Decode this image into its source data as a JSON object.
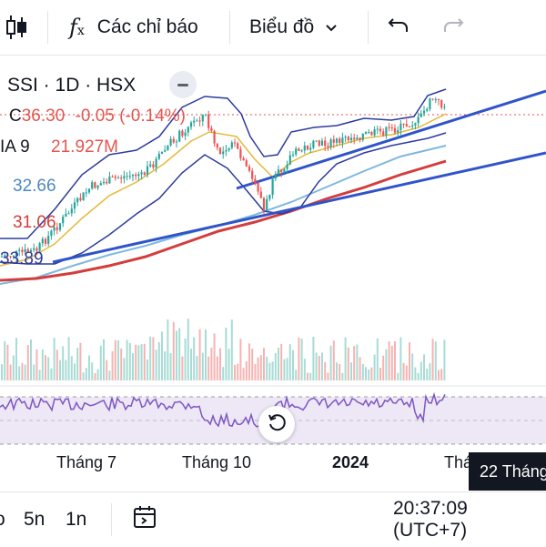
{
  "toolbar": {
    "indicators_label": "Các chỉ báo",
    "chart_type_label": "Biểu đồ"
  },
  "legend": {
    "symbol": "SSI · 1D · HSX",
    "close": "C36.30",
    "change": "-0.05 (-0.14%)",
    "ma_label": "IA 9",
    "ma_value": "21.927M",
    "ind1": "32.66",
    "ind2": "31.06",
    "ind3": "33.89"
  },
  "time_axis": {
    "labels": [
      "Tháng 7",
      "Tháng 10",
      "2024",
      "Thá"
    ],
    "tooltip": "22 Tháng"
  },
  "bottom": {
    "range_5d": "5n",
    "range_1y": "1n",
    "clock": "20:37:09 (UTC+7)"
  },
  "colors": {
    "up": "#26a69a",
    "down": "#ef5350",
    "text_red": "#e5554e",
    "blue_ind": "#4c88c6",
    "trend": "#2f54c9",
    "ma_red": "#d43d3d",
    "ma_yellow": "#e5b93a",
    "ma_light": "#7fb8de",
    "bands": "#2d3b9e",
    "rsi": "#7e57c2",
    "rsi_fill": "#ede7f6"
  }
}
